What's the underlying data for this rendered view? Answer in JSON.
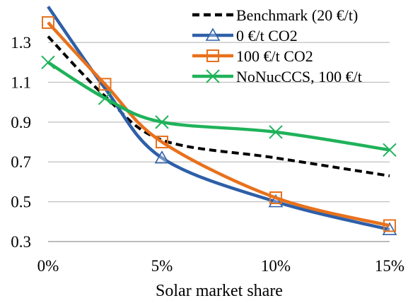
{
  "chart_data": {
    "type": "line",
    "title": "",
    "xlabel": "Solar market share",
    "ylabel": "",
    "x": [
      0,
      2.5,
      5,
      10,
      15
    ],
    "x_ticks": [
      0,
      5,
      10,
      15
    ],
    "x_tick_labels": [
      "0%",
      "5%",
      "10%",
      "15%"
    ],
    "xlim": [
      0,
      15
    ],
    "y_ticks": [
      0.3,
      0.5,
      0.7,
      0.9,
      1.1,
      1.3
    ],
    "y_tick_labels": [
      "0.3",
      "0.5",
      "0.7",
      "0.9",
      "1.1",
      "1.3"
    ],
    "ylim": [
      0.3,
      1.46
    ],
    "grid": "horizontal",
    "legend_position": "top-right",
    "series": [
      {
        "name": "Benchmark (20 €/t)",
        "values": [
          1.33,
          1.03,
          0.81,
          0.72,
          0.63
        ],
        "color": "#000000",
        "style": "dashed",
        "marker": "none"
      },
      {
        "name": "0 €/t CO2",
        "values": [
          1.48,
          1.07,
          0.72,
          0.5,
          0.36
        ],
        "color": "#2E5FA8",
        "style": "solid",
        "marker": "triangle",
        "marked_points": [
          2,
          3,
          4
        ]
      },
      {
        "name": "100 €/t CO2",
        "values": [
          1.4,
          1.09,
          0.8,
          0.52,
          0.38
        ],
        "color": "#E8711C",
        "style": "solid",
        "marker": "square",
        "marked_points": [
          0,
          1,
          2,
          3,
          4
        ]
      },
      {
        "name": "NoNucCCS, 100 €/t",
        "values": [
          1.2,
          1.02,
          0.9,
          0.85,
          0.76
        ],
        "color": "#1FB25A",
        "style": "solid",
        "marker": "x",
        "marked_points": [
          0,
          1,
          2,
          3,
          4
        ]
      }
    ]
  }
}
